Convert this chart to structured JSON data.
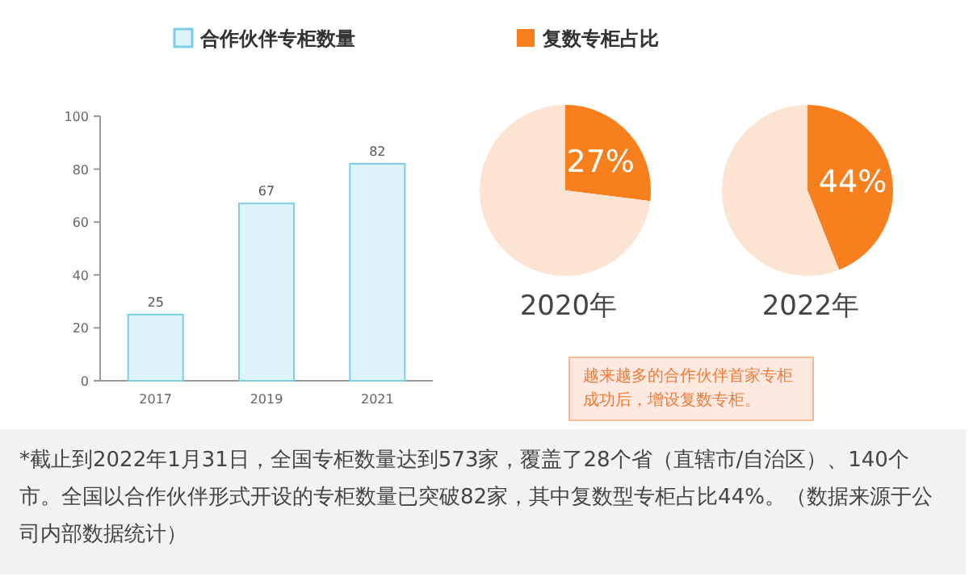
{
  "chart_data": [
    {
      "type": "bar",
      "categories": [
        "2017",
        "2019",
        "2021"
      ],
      "series": [
        {
          "name": "合作伙伴专柜数量",
          "color": "#dff3fb",
          "values": [
            25,
            67,
            82
          ]
        }
      ],
      "ylim": [
        0,
        100
      ],
      "yticks": [
        0,
        20,
        40,
        60,
        80,
        100
      ],
      "data_labels": true,
      "legend": "top",
      "grid": false,
      "annotations": [
        "*截止到2022年1月31日，全国专柜数量达到573家，覆盖了28个省（直辖市/自治区）、140个市。全国以合作伙伴形式开设的专柜数量已突破82家，其中复数型专柜占比44%。（数据来源于公司内部数据统计）"
      ]
    },
    {
      "type": "pie",
      "title": "2020年",
      "categories": [
        "复数专柜占比",
        null
      ],
      "values": [
        27,
        73
      ],
      "colors": [
        "#f77f1e",
        "#fde3d2"
      ],
      "value_labels": [
        "27%",
        null
      ],
      "legend": "top"
    },
    {
      "type": "pie",
      "title": "2022年",
      "categories": [
        null,
        null
      ],
      "values": [
        44,
        56
      ],
      "colors": [
        "#f77f1e",
        "#fde3d2"
      ],
      "value_labels": [
        "44%",
        null
      ],
      "annotations": [
        "越来越多的合作伙伴首家专柜成功后，增设复数专柜。"
      ]
    }
  ]
}
